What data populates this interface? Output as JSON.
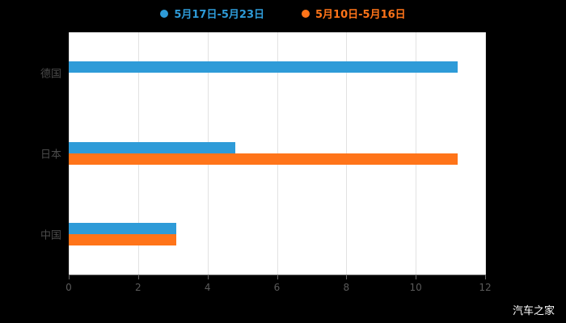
{
  "chart_data": {
    "type": "bar",
    "orientation": "horizontal",
    "title": "",
    "categories": [
      "德国",
      "日本",
      "中国"
    ],
    "series": [
      {
        "name": "5月17日-5月23日",
        "color": "#2E9BD8",
        "values": [
          11.2,
          4.8,
          3.1
        ]
      },
      {
        "name": "5月10日-5月16日",
        "color": "#FF7419",
        "values": [
          0,
          11.2,
          3.1
        ]
      }
    ],
    "xlim": [
      0,
      12
    ],
    "xticks": [
      0,
      2,
      4,
      6,
      8,
      10,
      12
    ],
    "grid": true,
    "legend_position": "top"
  },
  "watermark": "汽车之家",
  "colors": {
    "background": "#000000",
    "plot_background": "#ffffff",
    "gridline": "#e2e2e2",
    "axis_line": "#6b6b6b",
    "tick_text": "#5a5a5a",
    "category_text": "#4a4a4a",
    "watermark_text": "#ffffff"
  }
}
